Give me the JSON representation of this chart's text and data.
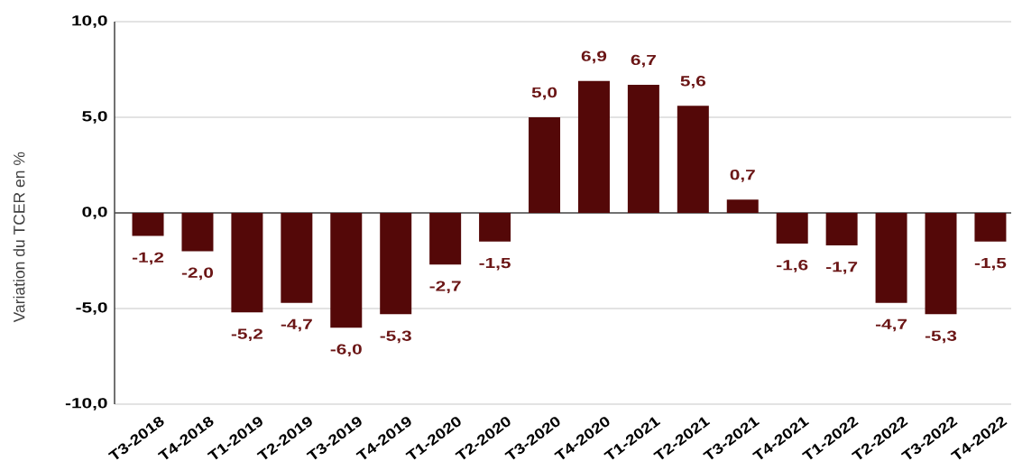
{
  "chart_data": {
    "type": "bar",
    "ylabel": "Variation du TCER en %",
    "categories": [
      "T3-2018",
      "T4-2018",
      "T1-2019",
      "T2-2019",
      "T3-2019",
      "T4-2019",
      "T1-2020",
      "T2-2020",
      "T3-2020",
      "T4-2020",
      "T1-2021",
      "T2-2021",
      "T3-2021",
      "T4-2021",
      "T1-2022",
      "T2-2022",
      "T3-2022",
      "T4-2022"
    ],
    "values": [
      -1.2,
      -2.0,
      -5.2,
      -4.7,
      -6.0,
      -5.3,
      -2.7,
      -1.5,
      5.0,
      6.9,
      6.7,
      5.6,
      0.7,
      -1.6,
      -1.7,
      -4.7,
      -5.3,
      -1.5
    ],
    "color": "#540808",
    "value_labels": [
      "-1,2",
      "-2,0",
      "-5,2",
      "-4,7",
      "-6,0",
      "-5,3",
      "-2,7",
      "-1,5",
      "5,0",
      "6,9",
      "6,7",
      "5,6",
      "0,7",
      "-1,6",
      "-1,7",
      "-4,7",
      "-5,3",
      "-1,5"
    ],
    "ylim": [
      -10,
      10
    ],
    "yticks": [
      {
        "value": -10,
        "label": "-10,0"
      },
      {
        "value": -5,
        "label": "-5,0"
      },
      {
        "value": 0,
        "label": "0,0"
      },
      {
        "value": 5,
        "label": "5,0"
      },
      {
        "value": 10,
        "label": "10,0"
      }
    ],
    "grid": "y"
  }
}
